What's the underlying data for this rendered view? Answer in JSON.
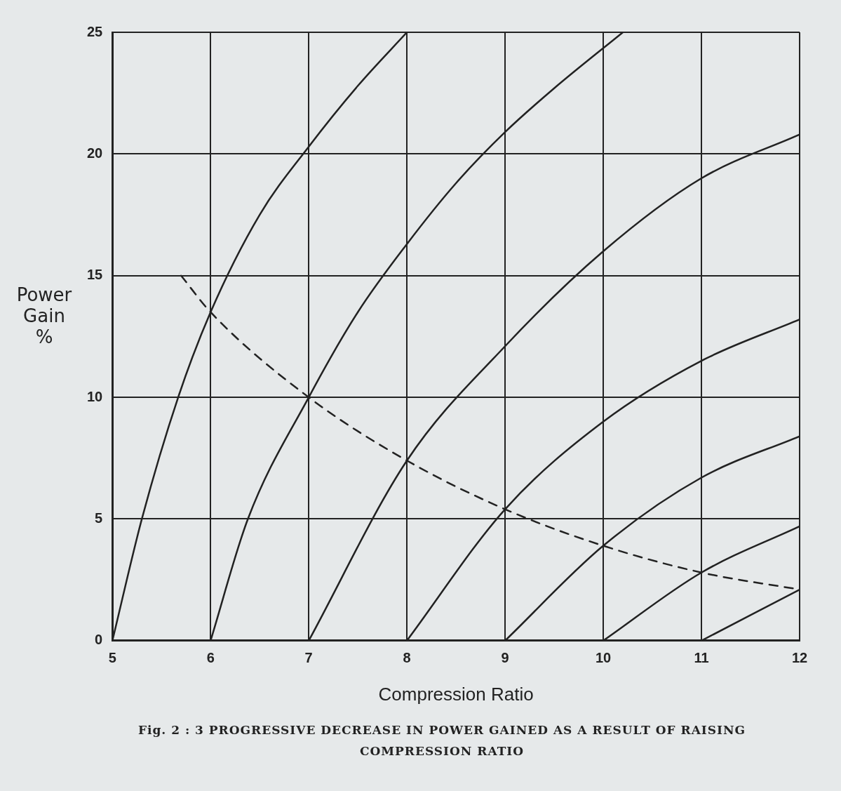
{
  "chart_data": {
    "type": "line",
    "title": "Fig. 2 : 3 PROGRESSIVE DECREASE IN POWER GAINED AS A RESULT OF RAISING COMPRESSION RATIO",
    "xlabel": "Compression Ratio",
    "ylabel": "Power Gain %",
    "xlim": [
      5,
      12
    ],
    "ylim": [
      0,
      25
    ],
    "xticks": [
      5,
      6,
      7,
      8,
      9,
      10,
      11,
      12
    ],
    "yticks": [
      0,
      5,
      10,
      15,
      20,
      25
    ],
    "grid": true,
    "legend": false,
    "marker": "none",
    "series": [
      {
        "color": "#222222",
        "x": [
          5,
          5.3,
          5.67,
          6,
          6.5,
          7,
          7.5,
          8
        ],
        "values": [
          0,
          5,
          10,
          13.5,
          17.5,
          20.3,
          22.8,
          25
        ]
      },
      {
        "color": "#222222",
        "x": [
          6,
          6.38,
          7,
          7.5,
          8,
          8.5,
          9,
          9.5,
          10.2
        ],
        "values": [
          0,
          5,
          10,
          13.5,
          16.3,
          18.8,
          20.9,
          22.7,
          25
        ]
      },
      {
        "color": "#222222",
        "x": [
          7,
          8,
          9,
          10,
          11,
          12
        ],
        "values": [
          0,
          7.4,
          12.1,
          16,
          19,
          20.8
        ]
      },
      {
        "color": "#222222",
        "x": [
          8,
          9,
          10,
          11,
          12
        ],
        "values": [
          0,
          5.4,
          9,
          11.5,
          13.2
        ]
      },
      {
        "color": "#222222",
        "x": [
          9,
          10,
          11,
          12
        ],
        "values": [
          0,
          3.9,
          6.7,
          8.4
        ]
      },
      {
        "color": "#222222",
        "x": [
          10,
          11,
          12
        ],
        "values": [
          0,
          2.8,
          4.7
        ]
      },
      {
        "color": "#222222",
        "x": [
          11,
          12
        ],
        "values": [
          0,
          2.1
        ]
      },
      {
        "color": "#222222",
        "line_style": "dashed",
        "x": [
          5.7,
          6,
          7,
          8,
          9,
          10,
          11,
          12
        ],
        "values": [
          15,
          13.5,
          10,
          7.4,
          5.4,
          3.9,
          2.8,
          2.1
        ]
      }
    ]
  }
}
